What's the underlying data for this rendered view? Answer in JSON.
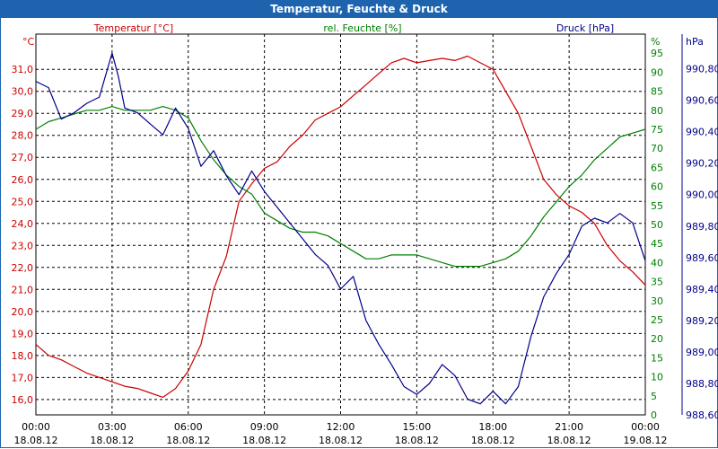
{
  "chart_data": {
    "type": "line",
    "title": "Temperatur, Feuchte & Druck",
    "colors": {
      "temperature": "#cc0000",
      "humidity": "#008000",
      "pressure": "#00008b",
      "grid": "#000000",
      "title_bg": "#1d63ad"
    },
    "axes": {
      "temperature": {
        "title": "Temperatur [°C]",
        "unit_label": "°C",
        "ylim": [
          15.3,
          32.6
        ],
        "ticks": [
          "16,0",
          "17,0",
          "18,0",
          "19,0",
          "20,0",
          "21,0",
          "22,0",
          "23,0",
          "24,0",
          "25,0",
          "26,0",
          "27,0",
          "28,0",
          "29,0",
          "30,0",
          "31,0"
        ]
      },
      "humidity": {
        "title": "rel. Feuchte [%]",
        "unit_label": "%",
        "ylim": [
          0,
          100
        ],
        "ticks": [
          "0",
          "5",
          "10",
          "15",
          "20",
          "25",
          "30",
          "35",
          "40",
          "45",
          "50",
          "55",
          "60",
          "65",
          "70",
          "75",
          "80",
          "85",
          "90",
          "95"
        ]
      },
      "pressure": {
        "title": "Druck [hPa]",
        "unit_label": "hPa",
        "ylim": [
          988.6,
          991.02
        ],
        "ticks": [
          "988,60",
          "988,80",
          "989,00",
          "989,20",
          "989,40",
          "989,60",
          "989,80",
          "990,00",
          "990,20",
          "990,40",
          "990,60",
          "990,80"
        ]
      }
    },
    "x_ticks": [
      {
        "time": "00:00",
        "date": "18.08.12"
      },
      {
        "time": "03:00",
        "date": "18.08.12"
      },
      {
        "time": "06:00",
        "date": "18.08.12"
      },
      {
        "time": "09:00",
        "date": "18.08.12"
      },
      {
        "time": "12:00",
        "date": "18.08.12"
      },
      {
        "time": "15:00",
        "date": "18.08.12"
      },
      {
        "time": "18:00",
        "date": "18.08.12"
      },
      {
        "time": "21:00",
        "date": "18.08.12"
      },
      {
        "time": "00:00",
        "date": "19.08.12"
      }
    ],
    "x_hours_range": [
      0,
      24
    ],
    "series": [
      {
        "name": "Temperatur",
        "axis": "temperature",
        "x": [
          0,
          0.5,
          1,
          1.5,
          2,
          2.5,
          3,
          3.5,
          4,
          4.5,
          5,
          5.5,
          6,
          6.5,
          7,
          7.5,
          8,
          8.5,
          9,
          9.5,
          10,
          10.5,
          11,
          11.5,
          12,
          12.5,
          13,
          13.5,
          14,
          14.5,
          15,
          15.5,
          16,
          16.5,
          17,
          17.5,
          18,
          18.5,
          19,
          19.5,
          20,
          20.5,
          21,
          21.5,
          22,
          22.5,
          23,
          23.5,
          24
        ],
        "values": [
          18.5,
          18.0,
          17.8,
          17.5,
          17.2,
          17.0,
          16.8,
          16.6,
          16.5,
          16.3,
          16.1,
          16.5,
          17.3,
          18.5,
          21.0,
          22.5,
          25.0,
          25.8,
          26.5,
          26.8,
          27.5,
          28.0,
          28.7,
          29.0,
          29.3,
          29.8,
          30.3,
          30.8,
          31.3,
          31.5,
          31.3,
          31.4,
          31.5,
          31.4,
          31.6,
          31.3,
          31.0,
          30.0,
          29.0,
          27.5,
          26.0,
          25.3,
          24.8,
          24.5,
          24.0,
          23.0,
          22.3,
          21.8,
          21.2
        ]
      },
      {
        "name": "rel. Feuchte",
        "axis": "humidity",
        "x": [
          0,
          0.5,
          1,
          1.5,
          2,
          2.5,
          3,
          3.5,
          4,
          4.5,
          5,
          5.5,
          6,
          6.5,
          7,
          7.5,
          8,
          8.5,
          9,
          9.5,
          10,
          10.5,
          11,
          11.5,
          12,
          12.5,
          13,
          13.5,
          14,
          14.5,
          15,
          15.5,
          16,
          16.5,
          17,
          17.5,
          18,
          18.5,
          19,
          19.5,
          20,
          20.5,
          21,
          21.5,
          22,
          22.5,
          23,
          23.5,
          24
        ],
        "values": [
          75,
          77,
          78,
          79,
          80,
          80,
          81,
          80,
          80,
          80,
          81,
          80,
          78,
          72,
          67,
          63,
          60,
          58,
          53,
          51,
          49,
          48,
          48,
          47,
          45,
          43,
          41,
          41,
          42,
          42,
          42,
          41,
          40,
          39,
          39,
          39,
          40,
          41,
          43,
          47,
          52,
          56,
          60,
          63,
          67,
          70,
          73,
          74,
          75
        ]
      },
      {
        "name": "Druck",
        "axis": "pressure",
        "x": [
          0,
          0.5,
          1,
          1.5,
          2,
          2.5,
          3,
          3.25,
          3.5,
          4,
          4.5,
          5,
          5.5,
          6,
          6.5,
          7,
          7.5,
          8,
          8.5,
          9,
          9.5,
          10,
          10.5,
          11,
          11.5,
          12,
          12.5,
          13,
          13.5,
          14,
          14.5,
          15,
          15.5,
          16,
          16.5,
          17,
          17.5,
          18,
          18.5,
          19,
          19.5,
          20,
          20.5,
          21,
          21.5,
          22,
          22.5,
          23,
          23.5,
          24
        ],
        "values": [
          990.72,
          990.68,
          990.48,
          990.52,
          990.58,
          990.62,
          990.9,
          990.75,
          990.55,
          990.52,
          990.45,
          990.38,
          990.55,
          990.42,
          990.18,
          990.28,
          990.12,
          990.0,
          990.15,
          990.02,
          989.92,
          989.82,
          989.72,
          989.62,
          989.55,
          989.4,
          989.48,
          989.2,
          989.05,
          988.92,
          988.78,
          988.73,
          988.8,
          988.92,
          988.85,
          988.7,
          988.67,
          988.75,
          988.67,
          988.78,
          989.1,
          989.35,
          989.5,
          989.62,
          989.8,
          989.85,
          989.82,
          989.88,
          989.82,
          989.58
        ]
      }
    ]
  }
}
